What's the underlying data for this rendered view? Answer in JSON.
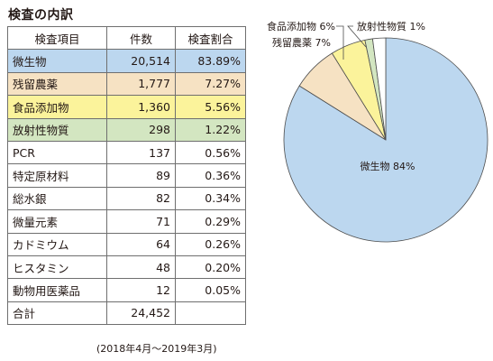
{
  "title": "検査の内訳",
  "table": {
    "headers": [
      "検査項目",
      "件数",
      "検査割合"
    ],
    "rows": [
      {
        "item": "微生物",
        "count": "20,514",
        "share": "83.89%",
        "color": "#bcd7ef"
      },
      {
        "item": "残留農薬",
        "count": "1,777",
        "share": "7.27%",
        "color": "#f6e2c3"
      },
      {
        "item": "食品添加物",
        "count": "1,360",
        "share": "5.56%",
        "color": "#fbf39b"
      },
      {
        "item": "放射性物質",
        "count": "298",
        "share": "1.22%",
        "color": "#d3e6c1"
      },
      {
        "item": "PCR",
        "count": "137",
        "share": "0.56%",
        "color": "#ffffff"
      },
      {
        "item": "特定原材料",
        "count": "89",
        "share": "0.36%",
        "color": "#ffffff"
      },
      {
        "item": "総水銀",
        "count": "82",
        "share": "0.34%",
        "color": "#ffffff"
      },
      {
        "item": "微量元素",
        "count": "71",
        "share": "0.29%",
        "color": "#ffffff"
      },
      {
        "item": "カドミウム",
        "count": "64",
        "share": "0.26%",
        "color": "#ffffff"
      },
      {
        "item": "ヒスタミン",
        "count": "48",
        "share": "0.20%",
        "color": "#ffffff"
      },
      {
        "item": "動物用医薬品",
        "count": "12",
        "share": "0.05%",
        "color": "#ffffff"
      }
    ],
    "total": {
      "item": "合計",
      "count": "24,452",
      "share": ""
    }
  },
  "period": "(2018年4月～2019年3月)",
  "chart_data": {
    "type": "pie",
    "slices": [
      {
        "label": "微生物 84%",
        "value": 83.89,
        "color": "#bcd7ef"
      },
      {
        "label": "残留農薬 7%",
        "value": 7.27,
        "color": "#f6e2c3"
      },
      {
        "label": "食品添加物 6%",
        "value": 5.56,
        "color": "#fbf39b"
      },
      {
        "label": "放射性物質 1%",
        "value": 1.22,
        "color": "#d3e6c1"
      },
      {
        "label": "",
        "value": 2.06,
        "color": "#ffffff"
      }
    ],
    "start": "12 o'clock, clockwise",
    "stroke_color": "#4d4d4d"
  }
}
